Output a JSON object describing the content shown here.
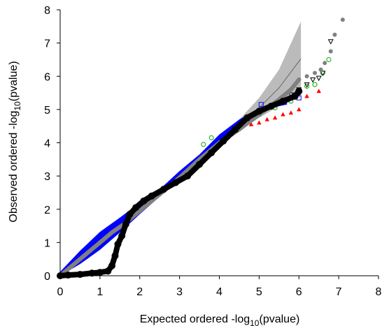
{
  "chart_data": {
    "type": "scatter",
    "title": "",
    "xlabel": "Expected ordered -log10(pvalue)",
    "xlabel_parts": {
      "prefix": "Expected ordered -log",
      "sub": "10",
      "suffix": "(pvalue)"
    },
    "ylabel": "Observed ordered -log10(pvalue)",
    "ylabel_parts": {
      "prefix": "Observed ordered -log",
      "sub": "10",
      "suffix": "(pvalue)"
    },
    "xlim": [
      0,
      8
    ],
    "ylim": [
      0,
      8
    ],
    "xticks": [
      "0",
      "1",
      "2",
      "3",
      "4",
      "5",
      "6",
      "7",
      "8"
    ],
    "yticks": [
      "0",
      "1",
      "2",
      "3",
      "4",
      "5",
      "6",
      "7",
      "8"
    ],
    "grid": false,
    "legend": "none",
    "confidence_band": {
      "color": "#bbbbbb",
      "x": [
        0,
        1,
        2,
        3,
        4,
        4.5,
        5,
        5.5,
        6.05
      ],
      "lower": [
        0,
        1,
        2,
        2.98,
        3.92,
        4.35,
        4.75,
        5.1,
        5.4
      ],
      "upper": [
        0,
        1,
        2,
        3.02,
        4.08,
        4.7,
        5.35,
        6.2,
        7.65
      ]
    },
    "series": [
      {
        "color": "#0000ff",
        "marker": "band",
        "x": [
          0,
          0.5,
          1,
          1.5,
          2,
          2.5,
          3,
          3.5,
          4,
          4.5,
          5,
          5.5,
          5.7
        ],
        "lower": [
          0,
          0.35,
          0.78,
          1.3,
          1.85,
          2.38,
          2.85,
          3.4,
          4.0,
          4.55,
          4.95,
          5.1,
          5.15
        ],
        "upper": [
          0.12,
          0.75,
          1.32,
          1.75,
          2.2,
          2.6,
          3.15,
          3.65,
          4.25,
          4.7,
          5.05,
          5.2,
          5.25
        ],
        "points": [
          [
            5.05,
            5.15
          ],
          [
            6.0,
            5.35
          ],
          [
            5.55,
            5.25
          ]
        ]
      },
      {
        "color": "#ff0000",
        "marker": "triangle",
        "x": [
          4.8,
          5.0,
          5.2,
          5.4,
          5.6,
          5.8,
          6.0,
          6.2,
          6.5
        ],
        "y": [
          4.55,
          4.6,
          4.7,
          4.75,
          4.85,
          4.9,
          5.0,
          5.4,
          5.55
        ]
      },
      {
        "color": "#00aa00",
        "marker": "circle-open",
        "x": [
          3.6,
          3.8,
          4.6,
          5.0,
          5.4,
          5.8,
          6.0,
          6.2,
          6.4,
          6.6,
          6.75
        ],
        "y": [
          3.95,
          4.15,
          4.6,
          4.85,
          5.05,
          5.25,
          5.5,
          5.7,
          5.75,
          6.1,
          6.5
        ]
      },
      {
        "color": "#000000",
        "marker": "triangle-open",
        "x": [
          5.6,
          5.8,
          6.0,
          6.2,
          6.35,
          6.5,
          6.6,
          6.8
        ],
        "y": [
          5.25,
          5.45,
          5.6,
          5.75,
          5.9,
          5.95,
          6.1,
          7.05
        ]
      },
      {
        "color": "#808080",
        "marker": "circle",
        "x": [
          0,
          0.3,
          0.6,
          0.8,
          1.0,
          1.3,
          1.6,
          2.0,
          2.5,
          3.0,
          3.5,
          4.0,
          4.5,
          5.0,
          5.5,
          5.8,
          6.0,
          6.2,
          6.4,
          6.55,
          6.65,
          6.8,
          6.9,
          7.1
        ],
        "y": [
          0,
          0.3,
          0.6,
          0.8,
          1.0,
          1.3,
          1.55,
          1.95,
          2.45,
          2.95,
          3.5,
          4.0,
          4.4,
          4.85,
          5.3,
          5.6,
          5.9,
          6.0,
          6.1,
          6.2,
          6.4,
          6.75,
          7.25,
          7.7
        ]
      },
      {
        "color": "#000000",
        "marker": "circle",
        "x": [
          0,
          0.2,
          0.5,
          0.8,
          1.0,
          1.2,
          1.3,
          1.38,
          1.45,
          1.55,
          1.65,
          1.75,
          1.9,
          2.1,
          2.3,
          2.6,
          2.9,
          3.2,
          3.5,
          3.8,
          4.1,
          4.4,
          4.7,
          5.0,
          5.3,
          5.6,
          5.9,
          6.0
        ],
        "y": [
          0,
          0.02,
          0.04,
          0.08,
          0.1,
          0.14,
          0.3,
          0.6,
          0.95,
          1.2,
          1.55,
          1.85,
          2.05,
          2.25,
          2.4,
          2.6,
          2.8,
          3.0,
          3.35,
          3.7,
          4.05,
          4.4,
          4.75,
          4.95,
          5.1,
          5.25,
          5.4,
          5.55
        ]
      }
    ]
  }
}
